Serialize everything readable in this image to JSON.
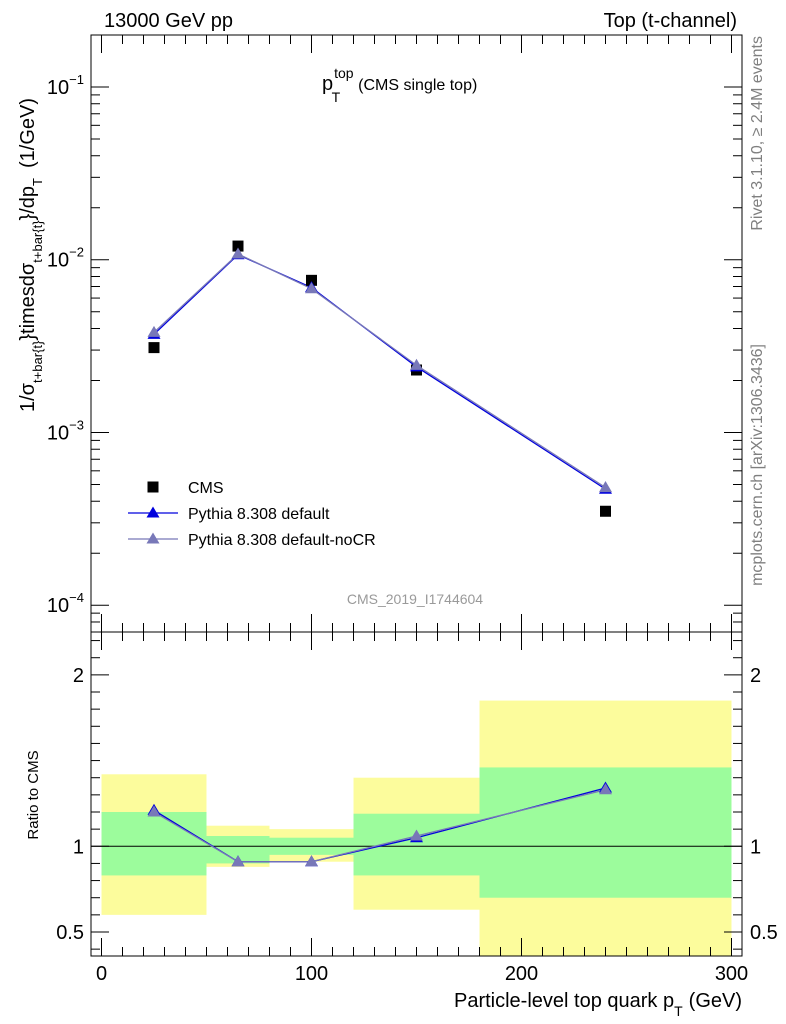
{
  "header": {
    "energy_label": "13000 GeV pp",
    "process_label": "Top (t-channel)"
  },
  "side_labels": {
    "rivet": "Rivet 3.1.10, ≥ 2.4M events",
    "mcplots": "mcplots.cern.ch [arXiv:1306.3436]"
  },
  "watermark": "CMS_2019_I1744604",
  "main_title": {
    "base": "p",
    "sup": "top",
    "sub": "T",
    "suffix": "(CMS single top)"
  },
  "ylabel_main": {
    "p1": "1/σ",
    "s1": "t+bar{t}",
    "p2": "}timesdσ",
    "s2": "t+bar{t}",
    "p3": "}/dp",
    "s3": "T",
    "p4": "(1/GeV)"
  },
  "ylabel_ratio": "Ratio to CMS",
  "xlabel": {
    "base": "Particle-level top quark p",
    "sub": "T",
    "suffix": "(GeV)"
  },
  "colors": {
    "data": "#000000",
    "pythia_default": "#0000dd",
    "pythia_nocr": "#7878b8",
    "band_inner": "#9cfc9c",
    "band_outer": "#fcfc9c"
  },
  "chart_data": [
    {
      "type": "scatter",
      "panel": "main",
      "yscale": "log",
      "xlim": [
        -5,
        305
      ],
      "ylim": [
        7e-05,
        0.2
      ],
      "yticks": [
        {
          "value": 0.1,
          "base": "10",
          "exp": "−1"
        },
        {
          "value": 0.01,
          "base": "10",
          "exp": "−2"
        },
        {
          "value": 0.001,
          "base": "10",
          "exp": "−3"
        },
        {
          "value": 0.0001,
          "base": "10",
          "exp": "−4"
        }
      ],
      "series": [
        {
          "name": "CMS",
          "marker": "square",
          "x": [
            25,
            65,
            100,
            150,
            240
          ],
          "y": [
            0.0031,
            0.012,
            0.0076,
            0.0023,
            0.00035
          ]
        },
        {
          "name": "Pythia 8.308 default",
          "marker": "triangle",
          "x": [
            25,
            65,
            100,
            150,
            240
          ],
          "y": [
            0.0037,
            0.0107,
            0.0069,
            0.0024,
            0.00047
          ]
        },
        {
          "name": "Pythia 8.308 default-noCR",
          "marker": "triangle",
          "x": [
            25,
            65,
            100,
            150,
            240
          ],
          "y": [
            0.0038,
            0.0108,
            0.0068,
            0.00245,
            0.00048
          ]
        }
      ],
      "legend": "middle-left"
    },
    {
      "type": "line",
      "panel": "ratio",
      "xlim": [
        -5,
        305
      ],
      "ylim": [
        0.36,
        2.25
      ],
      "yticks": [
        {
          "value": 0.5,
          "label": "0.5"
        },
        {
          "value": 1,
          "label": "1"
        },
        {
          "value": 2,
          "label": "2"
        }
      ],
      "xticks": [
        {
          "value": 0,
          "label": "0"
        },
        {
          "value": 100,
          "label": "100"
        },
        {
          "value": 200,
          "label": "200"
        },
        {
          "value": 300,
          "label": "300"
        }
      ],
      "bins": [
        {
          "lo": 0,
          "hi": 50,
          "inner": [
            0.83,
            1.2
          ],
          "outer": [
            0.6,
            1.42
          ]
        },
        {
          "lo": 50,
          "hi": 80,
          "inner": [
            0.9,
            1.06
          ],
          "outer": [
            0.88,
            1.12
          ]
        },
        {
          "lo": 80,
          "hi": 120,
          "inner": [
            0.95,
            1.05
          ],
          "outer": [
            0.91,
            1.1
          ]
        },
        {
          "lo": 120,
          "hi": 180,
          "inner": [
            0.83,
            1.19
          ],
          "outer": [
            0.63,
            1.4
          ]
        },
        {
          "lo": 180,
          "hi": 300,
          "inner": [
            0.7,
            1.46
          ],
          "outer": [
            0.36,
            1.85
          ]
        }
      ],
      "series": [
        {
          "name": "Pythia 8.308 default",
          "x": [
            25,
            65,
            100,
            150,
            240
          ],
          "y": [
            1.21,
            0.91,
            0.91,
            1.05,
            1.34
          ]
        },
        {
          "name": "Pythia 8.308 default-noCR",
          "x": [
            25,
            65,
            100,
            150,
            240
          ],
          "y": [
            1.2,
            0.91,
            0.91,
            1.06,
            1.33
          ]
        }
      ]
    }
  ]
}
